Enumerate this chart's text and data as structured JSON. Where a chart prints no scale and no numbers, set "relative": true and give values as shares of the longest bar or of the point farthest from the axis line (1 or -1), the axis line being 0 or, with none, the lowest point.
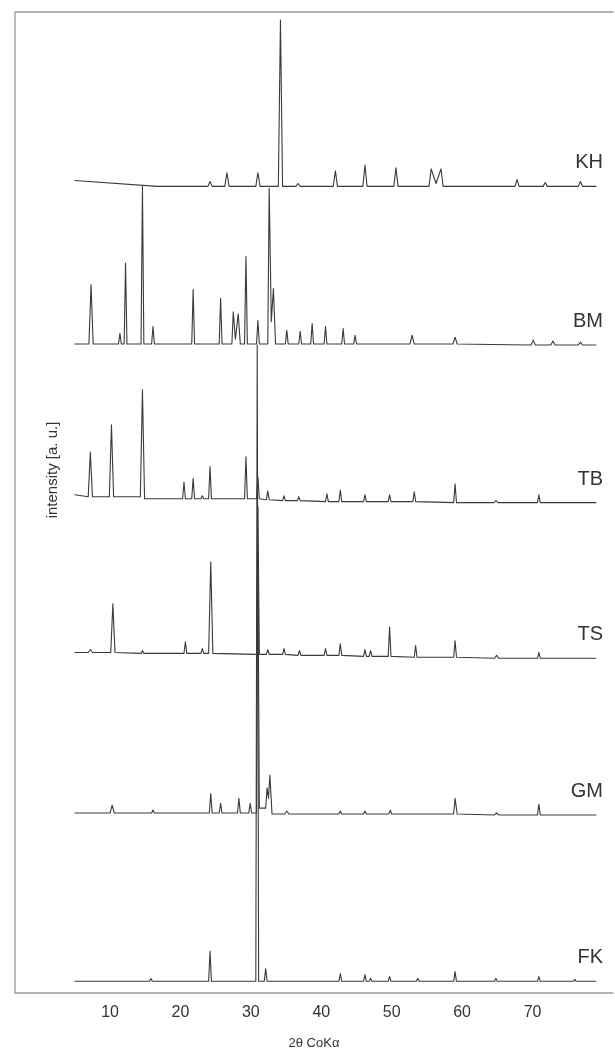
{
  "chart_data": {
    "type": "line",
    "relative": true,
    "xlabel": "2θ CoKα",
    "ylabel": "intensity [a. u.]",
    "xlim": [
      -3.5,
      81.5
    ],
    "xticks": [
      10,
      20,
      30,
      40,
      50,
      60,
      70
    ],
    "line_style": "solid",
    "marker": "none",
    "series": [
      {
        "name": "KH",
        "color": "#3a3a3a",
        "x": [
          5,
          16.7,
          23.9,
          24.2,
          24.5,
          26.3,
          26.6,
          26.9,
          30.7,
          31.0,
          31.3,
          33.9,
          34.2,
          34.5,
          36.4,
          36.7,
          37.0,
          41.7,
          42.0,
          42.3,
          45.9,
          46.2,
          46.5,
          50.3,
          50.6,
          50.9,
          55.3,
          55.6,
          56.3,
          57.0,
          57.3,
          67.5,
          67.8,
          68.1,
          71.5,
          71.8,
          72.1,
          76.5,
          76.8,
          77.1,
          79
        ],
        "values": [
          0.835,
          0.829,
          0.829,
          0.834,
          0.829,
          0.829,
          0.843,
          0.829,
          0.829,
          0.843,
          0.829,
          0.829,
          1,
          0.829,
          0.829,
          0.832,
          0.829,
          0.829,
          0.845,
          0.829,
          0.829,
          0.851,
          0.829,
          0.829,
          0.848,
          0.829,
          0.829,
          0.847,
          0.832,
          0.847,
          0.829,
          0.829,
          0.836,
          0.829,
          0.829,
          0.833,
          0.829,
          0.829,
          0.834,
          0.829,
          0.829
        ]
      },
      {
        "name": "BM",
        "color": "#3a3a3a",
        "x": [
          5,
          7.0,
          7.3,
          7.6,
          11.2,
          11.4,
          11.6,
          12.0,
          12.2,
          12.4,
          14.4,
          14.6,
          14.8,
          15.9,
          16.1,
          16.3,
          21.6,
          21.8,
          22.0,
          25.5,
          25.7,
          25.9,
          27.3,
          27.5,
          27.8,
          28.2,
          28.5,
          29.1,
          29.3,
          29.5,
          30.8,
          31.0,
          31.2,
          32.4,
          32.6,
          32.9,
          33.2,
          33.5,
          34.9,
          35.1,
          35.3,
          36.8,
          37.0,
          37.2,
          38.5,
          38.7,
          38.9,
          40.4,
          40.6,
          40.8,
          42.9,
          43.1,
          43.3,
          44.6,
          44.8,
          45.0,
          52.6,
          52.9,
          53.2,
          58.7,
          59.0,
          59.3,
          69.8,
          70.1,
          70.4,
          72.6,
          72.9,
          73.2,
          76.5,
          76.8,
          77.1,
          79
        ],
        "values": [
          0.667,
          0.667,
          0.728,
          0.667,
          0.667,
          0.678,
          0.667,
          0.667,
          0.75,
          0.667,
          0.667,
          0.829,
          0.667,
          0.667,
          0.685,
          0.667,
          0.667,
          0.723,
          0.667,
          0.667,
          0.714,
          0.667,
          0.667,
          0.7,
          0.672,
          0.698,
          0.667,
          0.667,
          0.757,
          0.667,
          0.667,
          0.691,
          0.667,
          0.667,
          0.827,
          0.69,
          0.724,
          0.667,
          0.667,
          0.681,
          0.667,
          0.667,
          0.68,
          0.667,
          0.667,
          0.688,
          0.667,
          0.667,
          0.685,
          0.667,
          0.667,
          0.683,
          0.667,
          0.667,
          0.676,
          0.667,
          0.667,
          0.676,
          0.667,
          0.667,
          0.674,
          0.667,
          0.666,
          0.671,
          0.666,
          0.666,
          0.67,
          0.666,
          0.666,
          0.669,
          0.666,
          0.666
        ]
      },
      {
        "name": "TB",
        "color": "#3a3a3a",
        "x": [
          5,
          6.9,
          7.2,
          7.5,
          9.9,
          10.2,
          10.5,
          14.3,
          14.6,
          14.9,
          20.3,
          20.5,
          20.7,
          21.6,
          21.8,
          22.0,
          22.9,
          23.1,
          23.3,
          24.0,
          24.2,
          24.4,
          29.1,
          29.3,
          29.5,
          30.8,
          31.0,
          31.2,
          32.2,
          32.4,
          32.6,
          34.5,
          34.7,
          34.9,
          36.6,
          36.8,
          37.0,
          40.6,
          40.8,
          41.0,
          42.5,
          42.7,
          42.9,
          46.0,
          46.2,
          46.4,
          49.5,
          49.7,
          49.9,
          53.0,
          53.2,
          53.4,
          58.8,
          59.0,
          59.2,
          64.5,
          64.8,
          65.1,
          70.7,
          70.9,
          71.1,
          79
        ],
        "values": [
          0.512,
          0.51,
          0.556,
          0.51,
          0.51,
          0.584,
          0.51,
          0.51,
          0.62,
          0.508,
          0.508,
          0.525,
          0.508,
          0.508,
          0.529,
          0.508,
          0.508,
          0.511,
          0.508,
          0.508,
          0.541,
          0.508,
          0.508,
          0.551,
          0.508,
          0.508,
          0.53,
          0.508,
          0.507,
          0.516,
          0.507,
          0.506,
          0.511,
          0.506,
          0.506,
          0.51,
          0.506,
          0.505,
          0.513,
          0.505,
          0.505,
          0.517,
          0.505,
          0.505,
          0.512,
          0.505,
          0.505,
          0.512,
          0.505,
          0.505,
          0.515,
          0.505,
          0.504,
          0.523,
          0.504,
          0.504,
          0.506,
          0.504,
          0.504,
          0.512,
          0.504,
          0.504
        ]
      },
      {
        "name": "TS",
        "color": "#3a3a3a",
        "x": [
          5,
          6.9,
          7.2,
          7.5,
          10.1,
          10.4,
          10.7,
          14.4,
          14.6,
          14.8,
          20.5,
          20.7,
          20.9,
          22.9,
          23.1,
          23.3,
          24.0,
          24.3,
          24.6,
          30.8,
          31.0,
          31.2,
          32.2,
          32.4,
          32.6,
          34.5,
          34.7,
          34.9,
          36.7,
          36.9,
          37.1,
          40.4,
          40.6,
          40.8,
          42.5,
          42.7,
          42.9,
          46.0,
          46.2,
          46.4,
          46.8,
          47.0,
          47.2,
          49.5,
          49.7,
          49.9,
          53.2,
          53.4,
          53.6,
          58.8,
          59.0,
          59.2,
          64.6,
          64.9,
          65.2,
          70.7,
          70.9,
          71.1,
          79
        ],
        "values": [
          0.35,
          0.35,
          0.353,
          0.35,
          0.35,
          0.4,
          0.35,
          0.349,
          0.352,
          0.349,
          0.349,
          0.361,
          0.349,
          0.349,
          0.354,
          0.349,
          0.349,
          0.443,
          0.349,
          0.348,
          0.5,
          0.348,
          0.348,
          0.353,
          0.348,
          0.348,
          0.354,
          0.348,
          0.347,
          0.352,
          0.347,
          0.347,
          0.354,
          0.347,
          0.347,
          0.359,
          0.347,
          0.346,
          0.353,
          0.346,
          0.346,
          0.352,
          0.346,
          0.346,
          0.376,
          0.346,
          0.345,
          0.357,
          0.345,
          0.345,
          0.362,
          0.345,
          0.344,
          0.347,
          0.344,
          0.344,
          0.35,
          0.344,
          0.344
        ]
      },
      {
        "name": "GM",
        "color": "#3a3a3a",
        "x": [
          5,
          10.0,
          10.3,
          10.6,
          15.9,
          16.1,
          16.3,
          24.1,
          24.3,
          24.5,
          25.5,
          25.7,
          25.9,
          28.1,
          28.3,
          28.5,
          29.7,
          29.9,
          30.1,
          30.8,
          31.0,
          31.2,
          32.1,
          32.3,
          32.5,
          32.7,
          33.0,
          34.8,
          35.1,
          35.4,
          42.5,
          42.7,
          42.9,
          46.0,
          46.2,
          46.4,
          49.6,
          49.8,
          50.0,
          58.8,
          59.0,
          59.3,
          64.6,
          64.9,
          65.2,
          70.7,
          70.9,
          71.1,
          79
        ],
        "values": [
          0.185,
          0.185,
          0.193,
          0.185,
          0.185,
          0.188,
          0.185,
          0.185,
          0.205,
          0.185,
          0.185,
          0.195,
          0.185,
          0.185,
          0.2,
          0.185,
          0.185,
          0.195,
          0.185,
          0.185,
          0.45,
          0.19,
          0.19,
          0.211,
          0.2,
          0.224,
          0.184,
          0.184,
          0.187,
          0.184,
          0.184,
          0.187,
          0.184,
          0.184,
          0.187,
          0.184,
          0.184,
          0.188,
          0.184,
          0.184,
          0.2,
          0.184,
          0.183,
          0.185,
          0.183,
          0.183,
          0.194,
          0.183,
          0.183
        ]
      },
      {
        "name": "FK",
        "color": "#3a3a3a",
        "x": [
          5,
          15.6,
          15.8,
          16.0,
          24.0,
          24.2,
          24.4,
          30.7,
          30.9,
          31.1,
          31.9,
          32.1,
          32.3,
          42.5,
          42.7,
          42.9,
          46.0,
          46.2,
          46.4,
          46.8,
          47.0,
          47.2,
          49.5,
          49.7,
          49.9,
          53.5,
          53.7,
          53.9,
          58.8,
          59.0,
          59.2,
          64.6,
          64.8,
          65.0,
          70.7,
          70.9,
          71.1,
          75.8,
          76.0,
          76.2,
          79
        ],
        "values": [
          0.012,
          0.012,
          0.015,
          0.012,
          0.012,
          0.043,
          0.012,
          0.012,
          0.666,
          0.012,
          0.012,
          0.025,
          0.012,
          0.012,
          0.02,
          0.012,
          0.012,
          0.019,
          0.012,
          0.012,
          0.015,
          0.012,
          0.012,
          0.017,
          0.012,
          0.012,
          0.015,
          0.012,
          0.012,
          0.022,
          0.012,
          0.012,
          0.015,
          0.012,
          0.012,
          0.017,
          0.012,
          0.012,
          0.014,
          0.012,
          0.012
        ]
      }
    ]
  }
}
